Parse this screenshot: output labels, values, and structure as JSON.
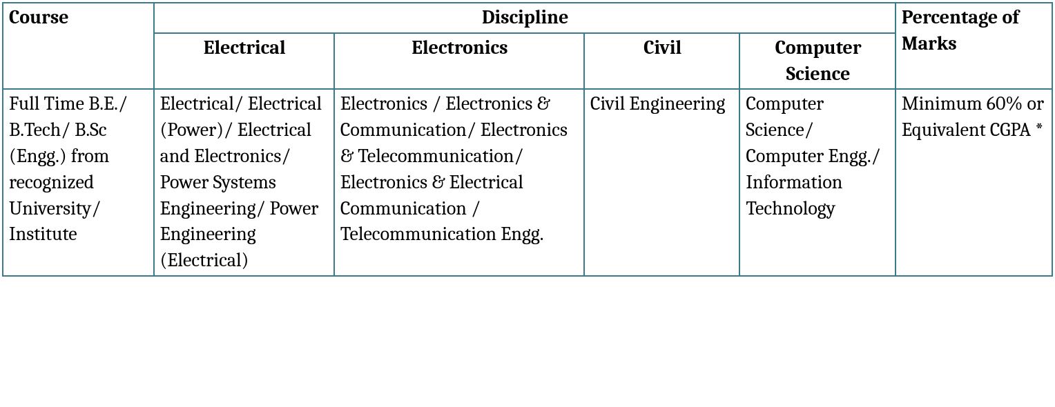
{
  "table": {
    "type": "table",
    "border_color": "#3a7a8c",
    "background_color": "#ffffff",
    "font_family": "Cambria / serif",
    "font_size_pt": 21,
    "text_color": "#000000",
    "column_widths_pct": [
      12.8,
      15.3,
      21.2,
      13.2,
      13.2,
      13.3
    ],
    "header": {
      "course": "Course",
      "discipline": "Discipline",
      "percentage": "Percentage of Marks",
      "sub": {
        "electrical": "Electrical",
        "electronics": "Electronics",
        "civil": "Civil",
        "cs": "Computer Science"
      }
    },
    "row": {
      "course": "Full Time B.E./ B.Tech/ B.Sc (Engg.) from recognized University/ Institute",
      "electrical": "Electrical/ Electrical (Power)/ Electrical and Electronics/ Power Systems Engineering/ Power Engineering (Electrical)",
      "electronics": "Electronics / Electronics & Communication/ Electronics & Telecommunication/ Electronics & Electrical Communication / Telecommunication Engg.",
      "civil": "Civil Engineering",
      "cs": "Computer Science/ Computer Engg./ Information Technology",
      "percentage": "Minimum 60% or Equivalent CGPA *"
    }
  }
}
